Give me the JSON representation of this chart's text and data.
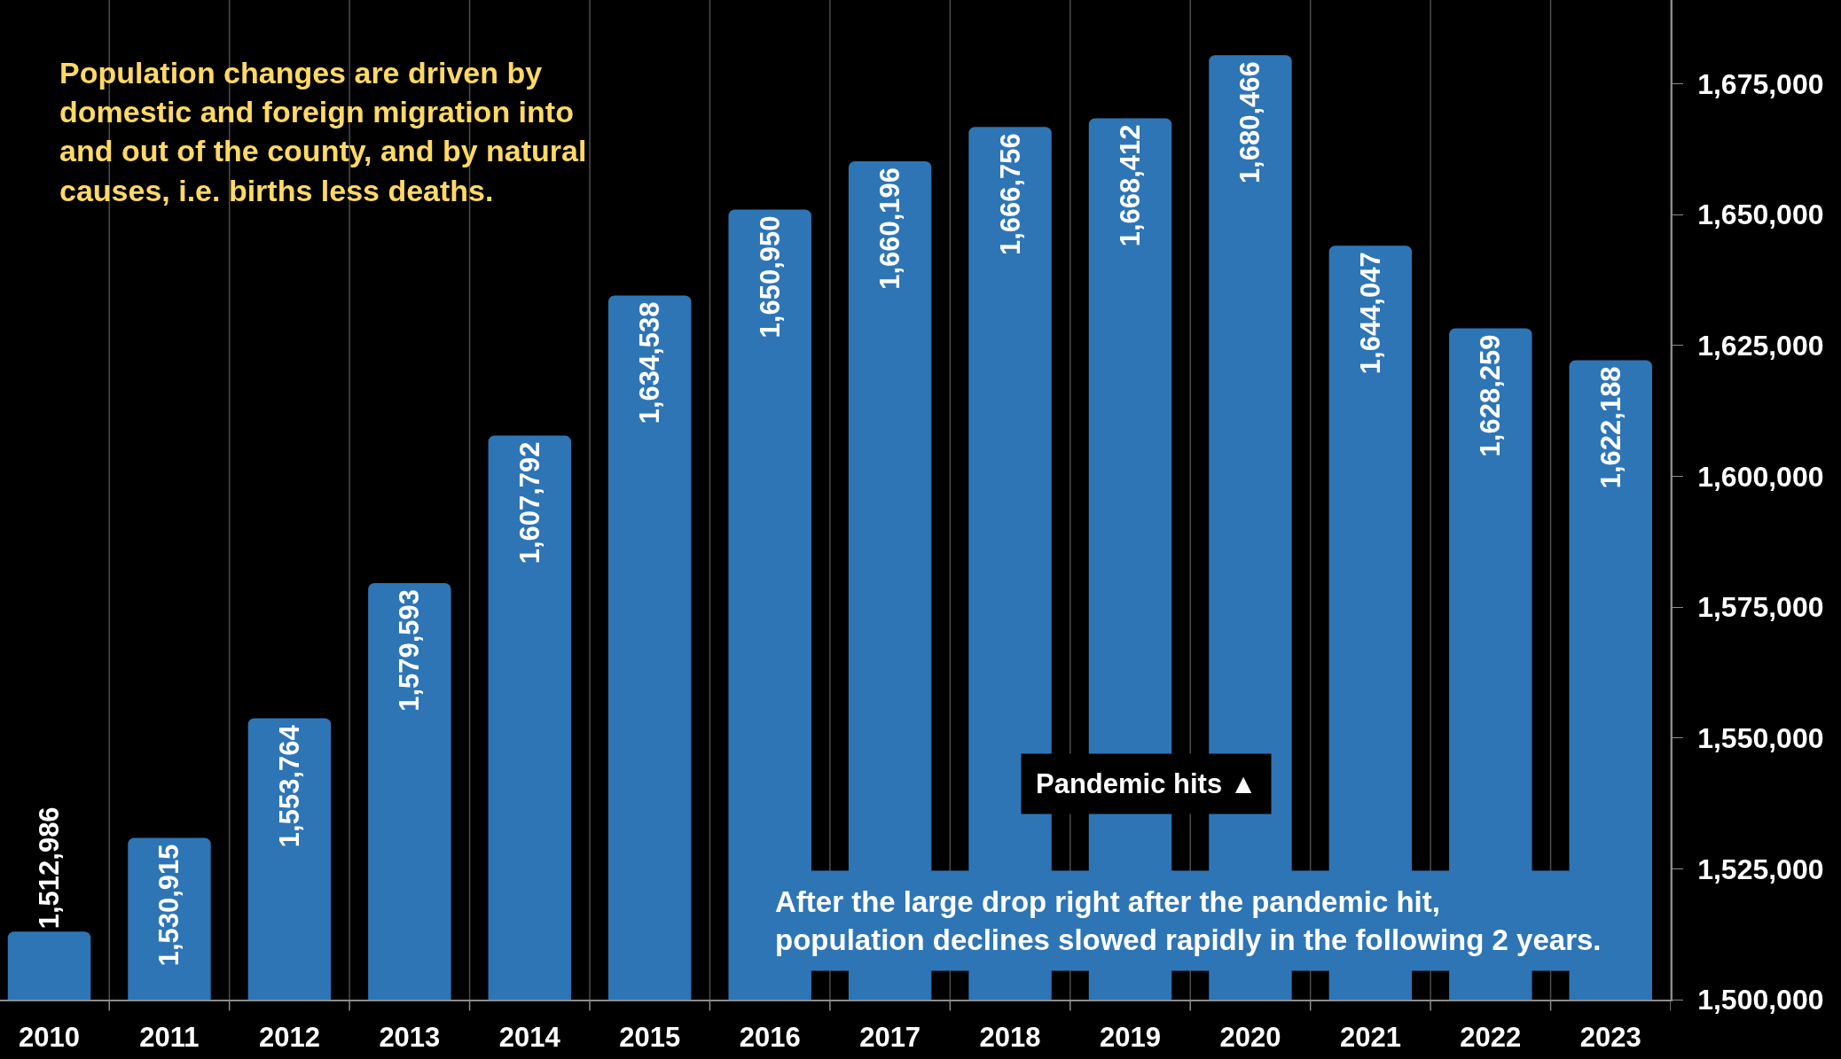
{
  "chart_data": {
    "type": "bar",
    "categories": [
      "2010",
      "2011",
      "2012",
      "2013",
      "2014",
      "2015",
      "2016",
      "2017",
      "2018",
      "2019",
      "2020",
      "2021",
      "2022",
      "2023"
    ],
    "values": [
      1512986,
      1530915,
      1553764,
      1579593,
      1607792,
      1634538,
      1650950,
      1660196,
      1666756,
      1668412,
      1680466,
      1644047,
      1628259,
      1622188
    ],
    "value_labels": [
      "1,512,986",
      "1,530,915",
      "1,553,764",
      "1,579,593",
      "1,607,792",
      "1,634,538",
      "1,650,950",
      "1,660,196",
      "1,666,756",
      "1,668,412",
      "1,680,466",
      "1,644,047",
      "1,628,259",
      "1,622,188"
    ],
    "color": "#2e75b6",
    "ylim": [
      1500000,
      1691000
    ],
    "yticks": [
      {
        "value": 1500000,
        "label": "1,500,000"
      },
      {
        "value": 1525000,
        "label": "1,525,000"
      },
      {
        "value": 1550000,
        "label": "1,550,000"
      },
      {
        "value": 1575000,
        "label": "1,575,000"
      },
      {
        "value": 1600000,
        "label": "1,600,000"
      },
      {
        "value": 1625000,
        "label": "1,625,000"
      },
      {
        "value": 1650000,
        "label": "1,650,000"
      },
      {
        "value": 1675000,
        "label": "1,675,000"
      }
    ],
    "grid": "x",
    "annotations": [
      "Population changes are driven by domestic and foreign migration into and out of the county, and by natural causes, i.e. births less deaths.",
      "Pandemic hits ▲",
      "After the large drop right after the pandemic hit, population declines slowed rapidly in the following 2 years."
    ]
  }
}
